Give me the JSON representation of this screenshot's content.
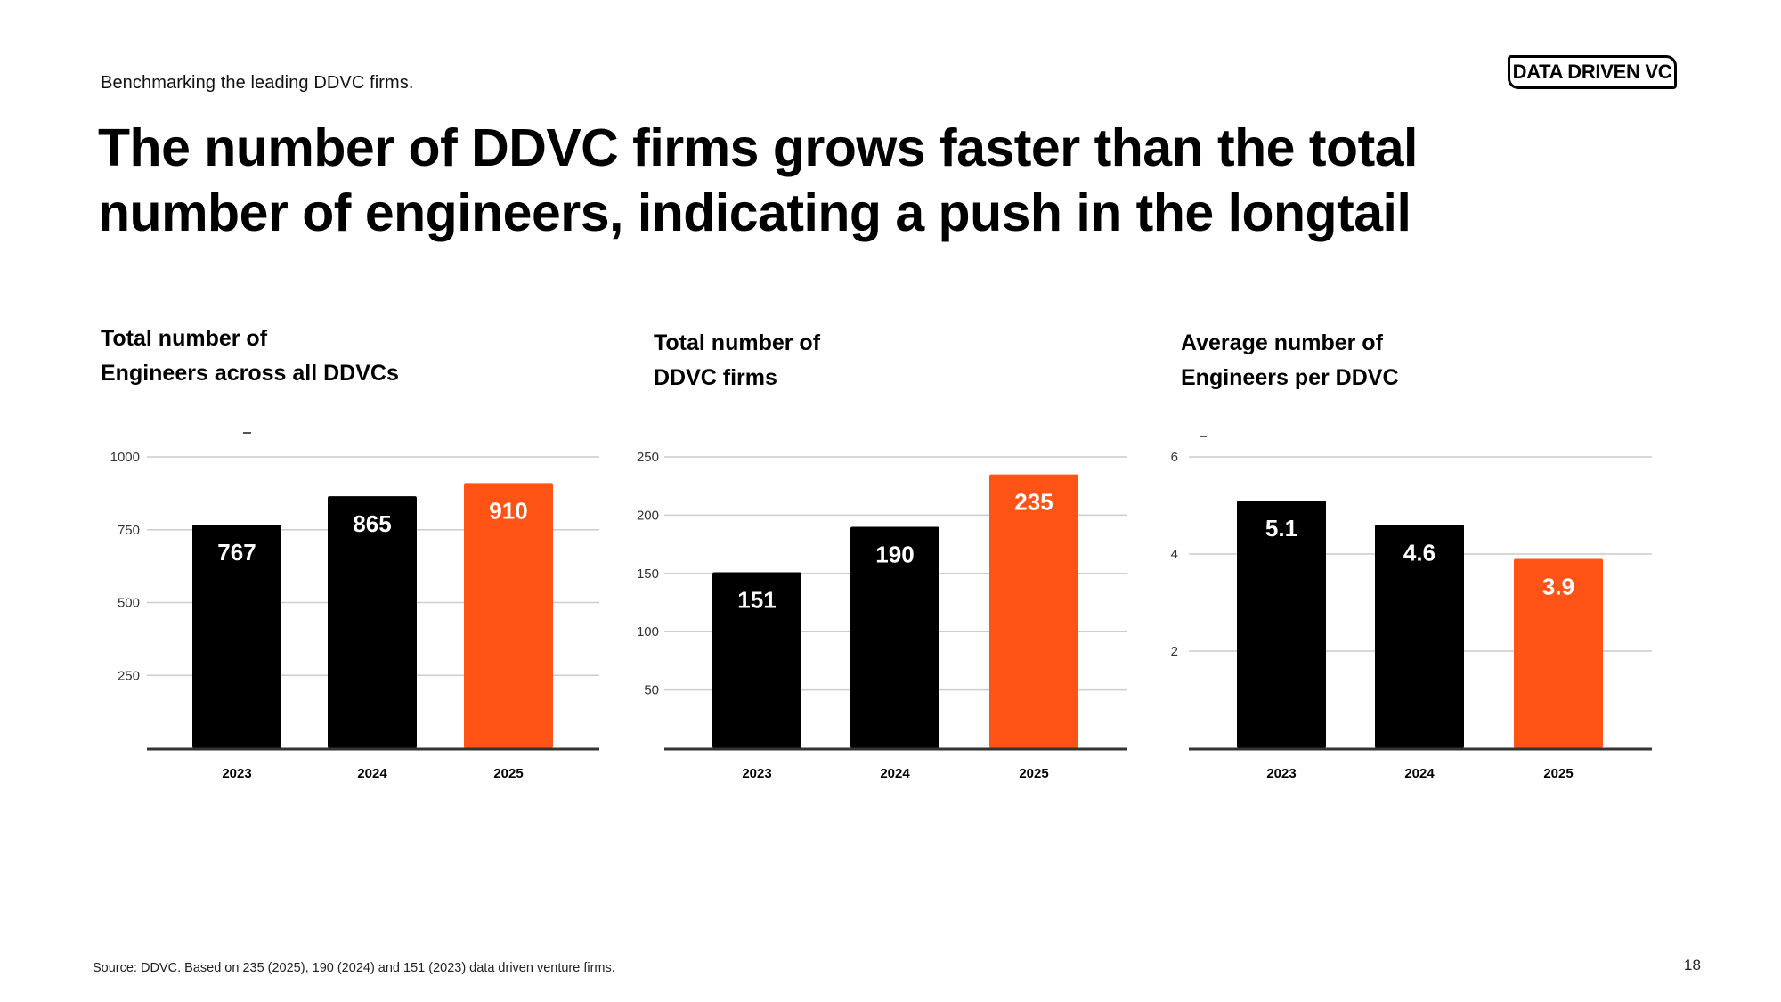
{
  "header": {
    "subtitle": "Benchmarking the leading DDVC firms.",
    "title_lines": [
      "The number of DDVC firms grows faster than the total",
      "number of engineers, indicating a push in the longtail"
    ],
    "logo_text": "DATA DRIVEN VC"
  },
  "colors": {
    "bar_default": "#000000",
    "bar_highlight": "#FF5416",
    "gridline": "#CCCCCC",
    "axis": "#333333"
  },
  "chart_data": [
    {
      "type": "bar",
      "title_lines": [
        "Total number of",
        "Engineers across all DDVCs"
      ],
      "categories": [
        "2023",
        "2024",
        "2025"
      ],
      "values": [
        767,
        865,
        910
      ],
      "value_labels": [
        "767",
        "865",
        "910"
      ],
      "highlight_index": 2,
      "yticks": [
        250,
        500,
        750,
        1000
      ],
      "ytick_labels": [
        "250",
        "500",
        "750",
        "1000"
      ],
      "ylim": [
        0,
        1000
      ],
      "grid": true,
      "xlabel": "",
      "ylabel": ""
    },
    {
      "type": "bar",
      "title_lines": [
        "Total number of",
        "DDVC firms"
      ],
      "categories": [
        "2023",
        "2024",
        "2025"
      ],
      "values": [
        151,
        190,
        235
      ],
      "value_labels": [
        "151",
        "190",
        "235"
      ],
      "highlight_index": 2,
      "yticks": [
        50,
        100,
        150,
        200,
        250
      ],
      "ytick_labels": [
        "50",
        "100",
        "150",
        "200",
        "250"
      ],
      "ylim": [
        0,
        250
      ],
      "grid": true,
      "xlabel": "",
      "ylabel": ""
    },
    {
      "type": "bar",
      "title_lines": [
        "Average number of",
        "Engineers per DDVC"
      ],
      "categories": [
        "2023",
        "2024",
        "2025"
      ],
      "values": [
        5.1,
        4.6,
        3.9
      ],
      "value_labels": [
        "5.1",
        "4.6",
        "3.9"
      ],
      "highlight_index": 2,
      "yticks": [
        2,
        4,
        6
      ],
      "ytick_labels": [
        "2",
        "4",
        "6"
      ],
      "ylim": [
        0,
        6
      ],
      "grid": true,
      "xlabel": "",
      "ylabel": ""
    }
  ],
  "footer": {
    "source": "Source: DDVC. Based on 235 (2025), 190 (2024) and 151 (2023) data driven venture firms.",
    "page_number": "18"
  }
}
